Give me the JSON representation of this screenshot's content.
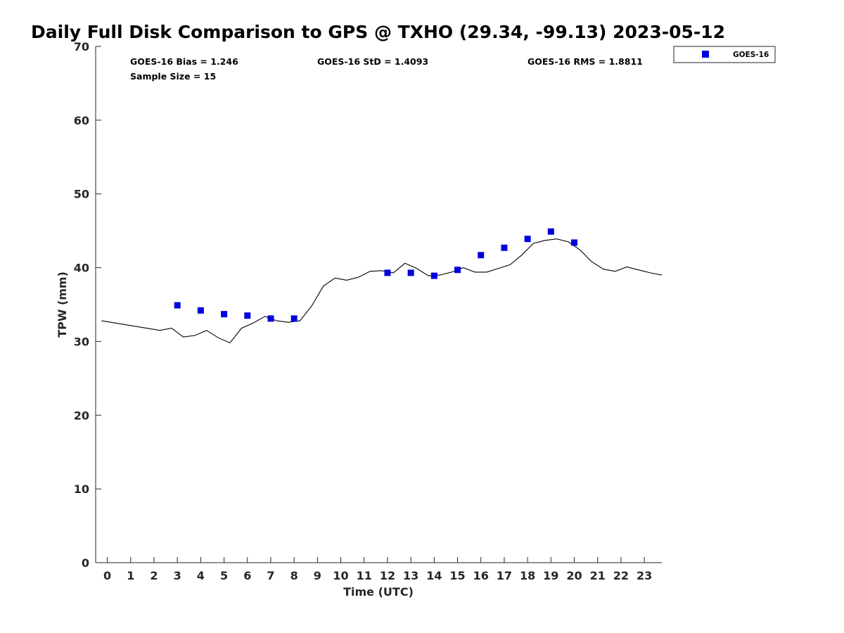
{
  "chart_data": {
    "type": "scatter",
    "title": "Daily Full Disk Comparison to GPS @ TXHO (29.34, -99.13) 2023-05-12",
    "xlabel": "Time (UTC)",
    "ylabel": "TPW (mm)",
    "xlim": [
      -0.5,
      23.75
    ],
    "ylim": [
      0,
      70
    ],
    "x_ticks": [
      "0",
      "1",
      "2",
      "3",
      "4",
      "5",
      "6",
      "7",
      "8",
      "9",
      "10",
      "11",
      "12",
      "13",
      "14",
      "15",
      "16",
      "17",
      "18",
      "19",
      "20",
      "21",
      "22",
      "23"
    ],
    "y_ticks": [
      "0",
      "10",
      "20",
      "30",
      "40",
      "50",
      "60",
      "70"
    ],
    "grid": false,
    "legend_position": "top-right",
    "stats": {
      "bias": "GOES-16 Bias = 1.246",
      "std": "GOES-16 StD = 1.4093",
      "rms": "GOES-16 RMS = 1.8811",
      "sample": "Sample Size = 15"
    },
    "series": [
      {
        "name": "GOES-16",
        "kind": "scatter",
        "color": "#0000dd",
        "marker": "square",
        "points": [
          [
            3,
            34.9
          ],
          [
            4,
            34.2
          ],
          [
            5,
            33.7
          ],
          [
            6,
            33.5
          ],
          [
            7,
            33.1
          ],
          [
            8,
            33.1
          ],
          [
            12,
            39.3
          ],
          [
            13,
            39.3
          ],
          [
            14,
            38.9
          ],
          [
            15,
            39.7
          ],
          [
            16,
            41.7
          ],
          [
            17,
            42.7
          ],
          [
            18,
            43.9
          ],
          [
            19,
            44.9
          ],
          [
            20,
            43.4
          ]
        ]
      },
      {
        "kind": "line",
        "color": "#000000",
        "points": [
          [
            -0.25,
            32.8
          ],
          [
            2.25,
            31.5
          ],
          [
            2.75,
            31.8
          ],
          [
            3.25,
            30.6
          ],
          [
            3.75,
            30.8
          ],
          [
            4.25,
            31.5
          ],
          [
            4.75,
            30.5
          ],
          [
            5.25,
            29.8
          ],
          [
            5.75,
            31.8
          ],
          [
            6.25,
            32.5
          ],
          [
            6.75,
            33.4
          ],
          [
            7.25,
            32.8
          ],
          [
            7.75,
            32.6
          ],
          [
            8.25,
            32.8
          ],
          [
            8.75,
            34.8
          ],
          [
            9.25,
            37.5
          ],
          [
            9.75,
            38.6
          ],
          [
            10.25,
            38.3
          ],
          [
            10.75,
            38.7
          ],
          [
            11.25,
            39.5
          ],
          [
            11.75,
            39.6
          ],
          [
            12.25,
            39.3
          ],
          [
            12.75,
            40.6
          ],
          [
            13.25,
            39.9
          ],
          [
            13.75,
            38.9
          ],
          [
            14.25,
            39.0
          ],
          [
            14.75,
            39.4
          ],
          [
            15.25,
            40.0
          ],
          [
            15.75,
            39.4
          ],
          [
            16.25,
            39.4
          ],
          [
            16.75,
            39.9
          ],
          [
            17.25,
            40.4
          ],
          [
            17.75,
            41.7
          ],
          [
            18.25,
            43.3
          ],
          [
            18.75,
            43.7
          ],
          [
            19.25,
            43.9
          ],
          [
            19.75,
            43.5
          ],
          [
            20.25,
            42.4
          ],
          [
            20.75,
            40.8
          ],
          [
            21.25,
            39.8
          ],
          [
            21.75,
            39.5
          ],
          [
            22.25,
            40.1
          ],
          [
            22.75,
            39.7
          ],
          [
            23.25,
            39.3
          ],
          [
            23.75,
            39.0
          ]
        ]
      }
    ]
  }
}
